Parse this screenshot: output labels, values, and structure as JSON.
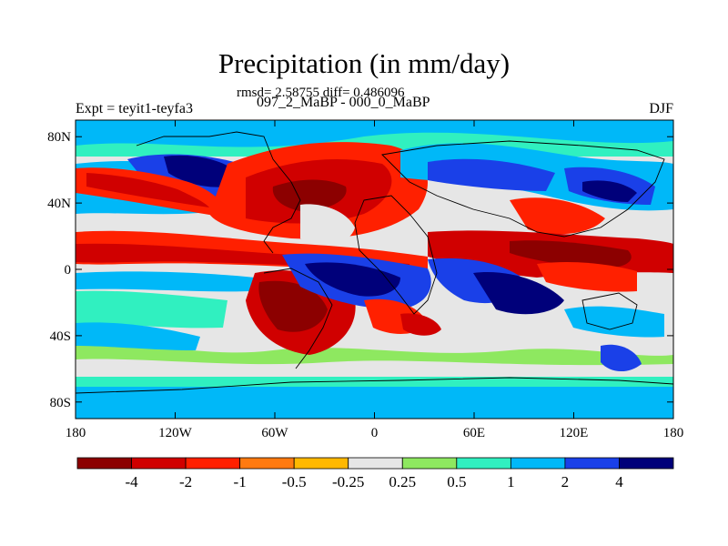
{
  "title": "Precipitation (in mm/day)",
  "stats": "rmsd= 2.58755 diff= 0.486096",
  "subtitle": "097_2_MaBP - 000_0_MaBP",
  "experiment": "Expt = teyit1-teyfa3",
  "season": "DJF",
  "latitude_ticks": [
    {
      "label": "80N",
      "value": 80
    },
    {
      "label": "40N",
      "value": 40
    },
    {
      "label": "0",
      "value": 0
    },
    {
      "label": "40S",
      "value": -40
    },
    {
      "label": "80S",
      "value": -80
    }
  ],
  "longitude_ticks": [
    {
      "label": "180",
      "value": -180
    },
    {
      "label": "120W",
      "value": -120
    },
    {
      "label": "60W",
      "value": -60
    },
    {
      "label": "0",
      "value": 0
    },
    {
      "label": "60E",
      "value": 60
    },
    {
      "label": "120E",
      "value": 120
    },
    {
      "label": "180",
      "value": 180
    }
  ],
  "colorbar": {
    "colors": [
      "#8c0000",
      "#d00000",
      "#ff2000",
      "#ff7a10",
      "#ffb800",
      "#e6e6e6",
      "#8ee860",
      "#30f0c0",
      "#00b8f8",
      "#1a40e8",
      "#00007a"
    ],
    "labels": [
      "-4",
      "-2",
      "-1",
      "-0.5",
      "-0.25",
      "0.25",
      "0.5",
      "1",
      "2",
      "4"
    ]
  }
}
